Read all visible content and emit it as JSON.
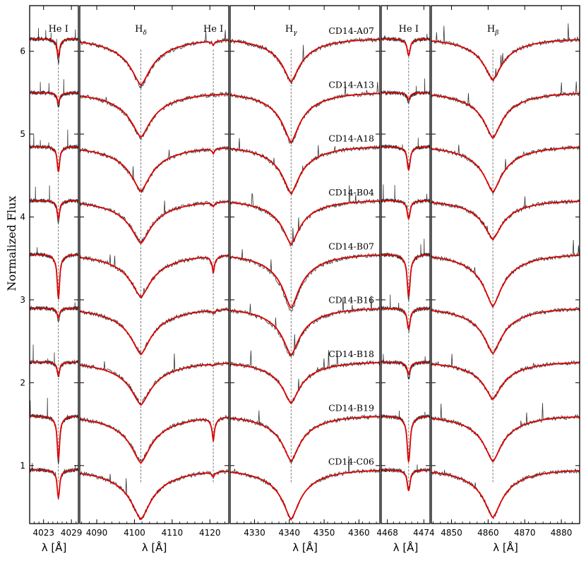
{
  "chart_data": {
    "type": "line",
    "ylabel": "Normalized Flux",
    "ylim": [
      0.3,
      6.55
    ],
    "yticks": [
      1,
      2,
      3,
      4,
      5,
      6
    ],
    "colors": {
      "observed": "#333333",
      "model": "#dd0000",
      "guide": "#555555"
    },
    "stars": [
      "CD14-A07",
      "CD14-A13",
      "CD14-A18",
      "CD14-B04",
      "CD14-B07",
      "CD14-B16",
      "CD14-B18",
      "CD14-B19",
      "CD14-C06"
    ],
    "offsets": [
      6.15,
      5.5,
      4.85,
      4.2,
      3.55,
      2.9,
      2.25,
      1.6,
      0.95
    ],
    "panels": [
      {
        "label": "He I",
        "xlabel": "λ [Å]",
        "xlim": [
          4020,
          4030.5
        ],
        "xticks": [
          4023,
          4029
        ],
        "center": 4026.2,
        "line_type": "he",
        "lines": [
          {
            "center": 4026.2,
            "obs_depth": [
              0.28,
              0.17,
              0.28,
              0.27,
              0.55,
              0.15,
              0.18,
              0.58,
              0.35
            ],
            "model_depth": [
              0.22,
              0.13,
              0.3,
              0.22,
              0.52,
              0.12,
              0.16,
              0.52,
              0.33
            ],
            "width": 0.65
          }
        ]
      },
      {
        "label": "H_δ",
        "label_main": "H",
        "label_sub": "δ",
        "xlabel": "λ [Å]",
        "xlim": [
          4085.5,
          4125
        ],
        "xticks": [
          4090,
          4100,
          4110,
          4120
        ],
        "center": 4101.7,
        "line_type": "balmer",
        "second_label": "He I",
        "second_center": 4120.9,
        "lines": [
          {
            "center": 4101.7,
            "obs_depth": [
              0.58,
              0.55,
              0.55,
              0.5,
              0.52,
              0.55,
              0.5,
              0.55,
              0.6
            ],
            "model_depth": [
              0.56,
              0.54,
              0.54,
              0.52,
              0.52,
              0.56,
              0.52,
              0.57,
              0.6
            ],
            "width": 5.5
          },
          {
            "center": 4120.9,
            "obs_depth": [
              0.05,
              0.0,
              0.06,
              0.05,
              0.22,
              0.04,
              0.02,
              0.28,
              0.06
            ],
            "model_depth": [
              0.05,
              0.0,
              0.06,
              0.05,
              0.2,
              0.04,
              0.02,
              0.28,
              0.06
            ],
            "width": 0.55
          }
        ]
      },
      {
        "label": "H_γ",
        "label_main": "H",
        "label_sub": "γ",
        "xlabel": "λ [Å]",
        "xlim": [
          4323,
          4366
        ],
        "xticks": [
          4330,
          4340,
          4350,
          4360
        ],
        "center": 4340.5,
        "line_type": "balmer",
        "lines": [
          {
            "center": 4340.5,
            "obs_depth": [
              0.53,
              0.62,
              0.58,
              0.55,
              0.7,
              0.6,
              0.5,
              0.55,
              0.6
            ],
            "model_depth": [
              0.52,
              0.6,
              0.57,
              0.53,
              0.65,
              0.57,
              0.5,
              0.55,
              0.6
            ],
            "width": 5.0
          }
        ]
      },
      {
        "label": "He I",
        "xlabel": "λ [Å]",
        "xlim": [
          4467,
          4475
        ],
        "xticks": [
          4468,
          4474
        ],
        "center": 4471.5,
        "line_type": "he",
        "lines": [
          {
            "center": 4471.5,
            "obs_depth": [
              0.2,
              0.12,
              0.25,
              0.2,
              0.55,
              0.28,
              0.2,
              0.52,
              0.22
            ],
            "model_depth": [
              0.2,
              0.08,
              0.28,
              0.22,
              0.5,
              0.25,
              0.15,
              0.55,
              0.25
            ],
            "width": 0.6
          }
        ]
      },
      {
        "label": "H_β",
        "label_main": "H",
        "label_sub": "β",
        "xlabel": "λ [Å]",
        "xlim": [
          4844.5,
          4885
        ],
        "xticks": [
          4850,
          4860,
          4870,
          4880
        ],
        "center": 4861.3,
        "line_type": "balmer",
        "lines": [
          {
            "center": 4861.3,
            "obs_depth": [
              0.5,
              0.55,
              0.55,
              0.47,
              0.63,
              0.55,
              0.45,
              0.55,
              0.58
            ],
            "model_depth": [
              0.5,
              0.55,
              0.55,
              0.47,
              0.63,
              0.55,
              0.45,
              0.55,
              0.58
            ],
            "width": 5.0
          }
        ]
      }
    ]
  }
}
